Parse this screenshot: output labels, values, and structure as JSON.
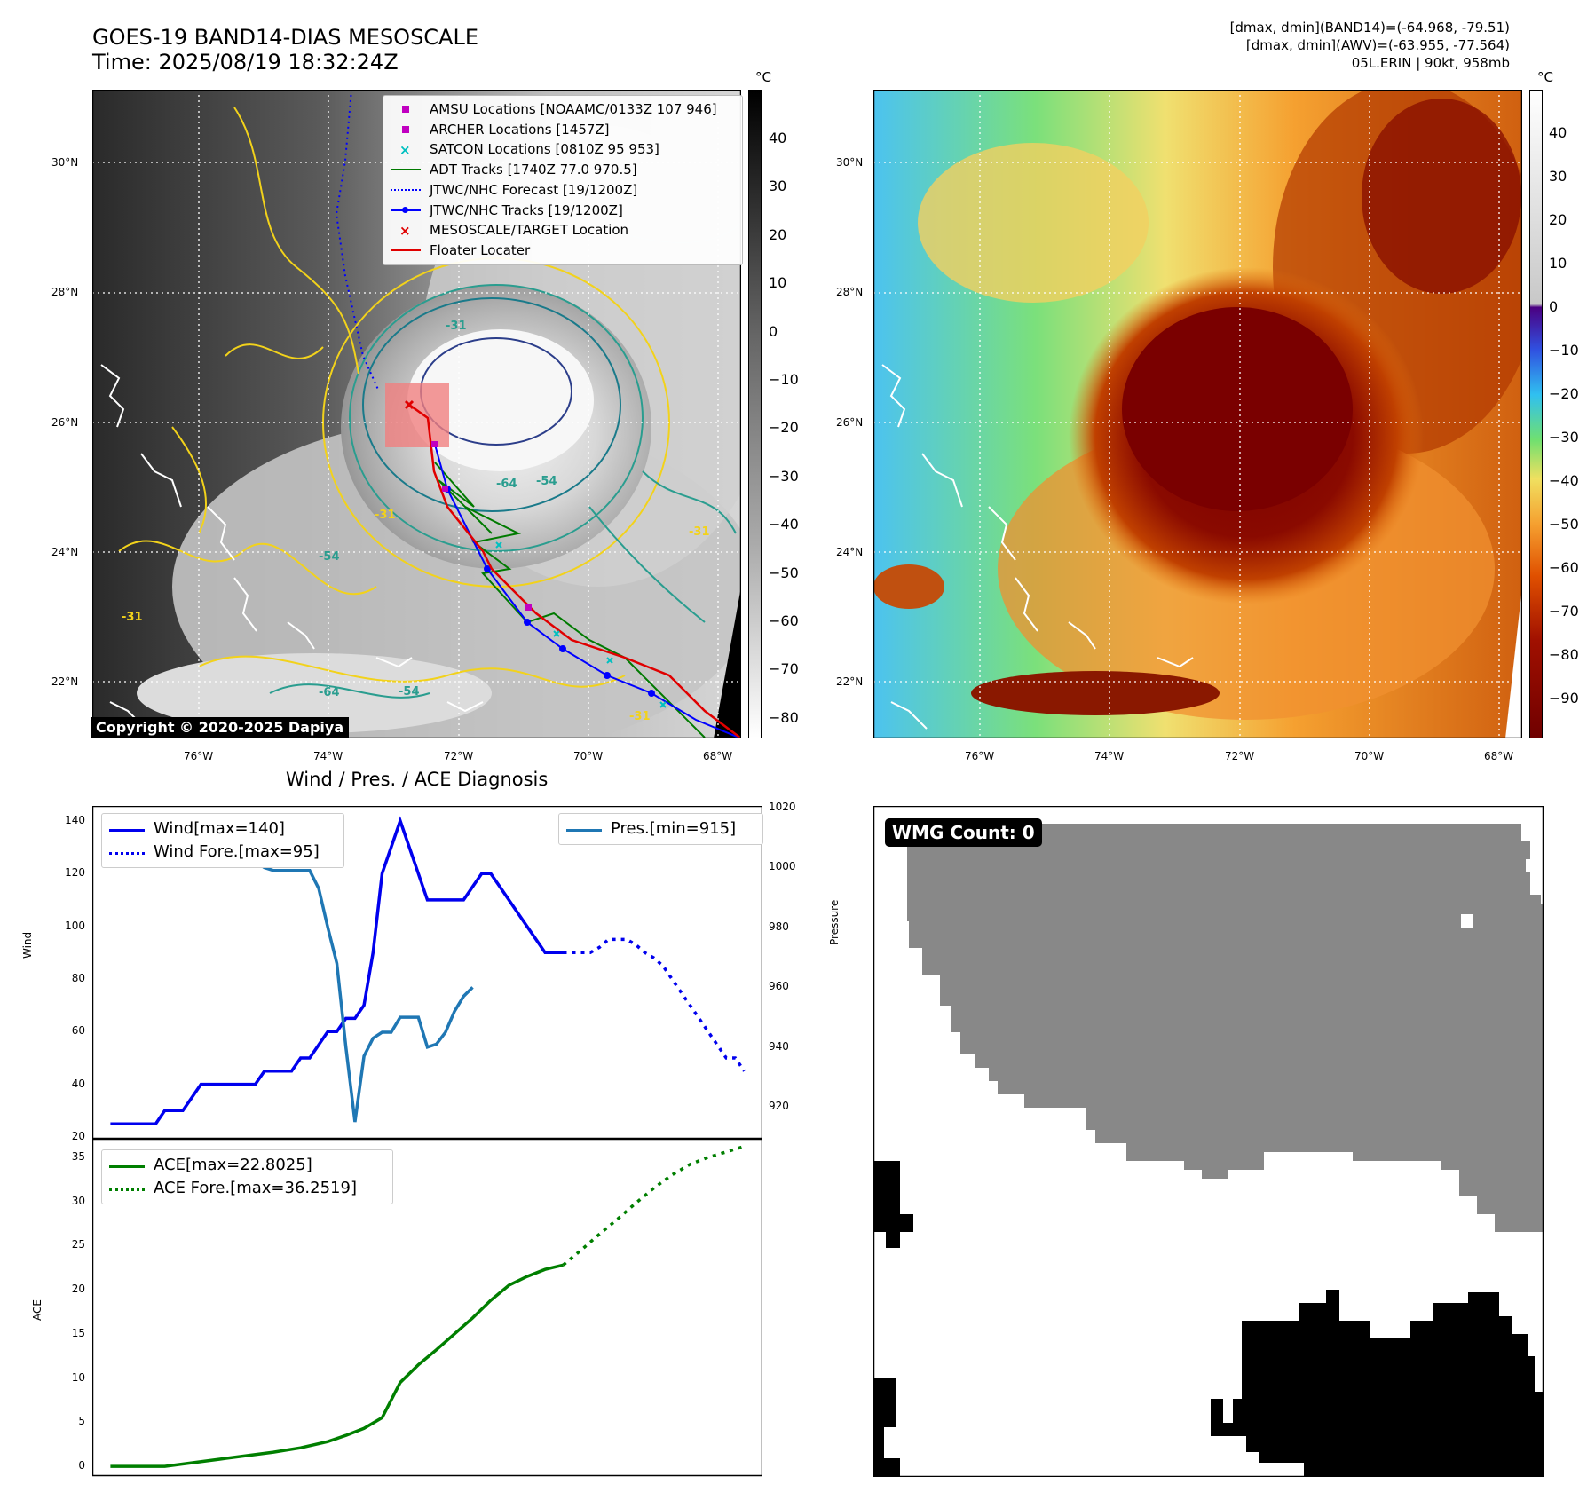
{
  "header": {
    "title_line1": "GOES-19 BAND14-DIAS MESOSCALE",
    "title_line2": "Time: 2025/08/19 18:32:24Z",
    "info_line1": "[dmax, dmin](BAND14)=(-64.968, -79.51)",
    "info_line2": "[dmax, dmin](AWV)=(-63.955, -77.564)",
    "info_line3": "05L.ERIN | 90kt, 958mb"
  },
  "map": {
    "lat_labels": [
      "30°N",
      "28°N",
      "26°N",
      "24°N",
      "22°N"
    ],
    "lon_labels": [
      "76°W",
      "74°W",
      "72°W",
      "70°W",
      "68°W"
    ],
    "copyright": "Copyright © 2020-2025 Dapiya",
    "contour_labels": [
      "-31",
      "-64",
      "-54",
      "-31",
      "-54",
      "-31",
      "-64",
      "-54",
      "-31",
      "-31"
    ],
    "legend": [
      {
        "label": "AMSU Locations [NOAAMC/0133Z 107 946]",
        "symbol": "magenta-square"
      },
      {
        "label": "ARCHER Locations [1457Z]",
        "symbol": "magenta-square"
      },
      {
        "label": "SATCON Locations [0810Z 95 953]",
        "symbol": "cyan-x"
      },
      {
        "label": "ADT Tracks [1740Z 77.0 970.5]",
        "symbol": "green-line"
      },
      {
        "label": "JTWC/NHC Forecast [19/1200Z]",
        "symbol": "blue-dotted-line"
      },
      {
        "label": "JTWC/NHC Tracks [19/1200Z]",
        "symbol": "blue-line-dot"
      },
      {
        "label": "MESOSCALE/TARGET Location",
        "symbol": "red-x"
      },
      {
        "label": "Floater Locater",
        "symbol": "red-line"
      }
    ],
    "colorbar_gray": {
      "unit": "°C",
      "ticks": [
        "40",
        "30",
        "20",
        "10",
        "0",
        "−10",
        "−20",
        "−30",
        "−40",
        "−50",
        "−60",
        "−70",
        "−80"
      ]
    },
    "colorbar_color": {
      "unit": "°C",
      "ticks": [
        "40",
        "30",
        "20",
        "10",
        "0",
        "−10",
        "−20",
        "−30",
        "−40",
        "−50",
        "−60",
        "−70",
        "−80",
        "−90"
      ]
    },
    "colors": {
      "track_red": "#e00000",
      "forecast_blue": "#0000ff",
      "adt_green": "#007a00",
      "amsu_magenta": "#c000c0",
      "satcon_cyan": "#00c0c0"
    }
  },
  "diagnosis": {
    "title": "Wind / Pres. / ACE Diagnosis",
    "wind_ylabel": "Wind",
    "pres_ylabel": "Pressure",
    "ace_ylabel": "ACE",
    "wind_yticks": [
      "140",
      "120",
      "100",
      "80",
      "60",
      "40",
      "20"
    ],
    "pres_yticks": [
      "1020",
      "1000",
      "980",
      "960",
      "940",
      "920"
    ],
    "ace_yticks": [
      "35",
      "30",
      "25",
      "20",
      "15",
      "10",
      "5",
      "0"
    ],
    "legend_wind": "Wind[max=140]",
    "legend_wind_fore": "Wind Fore.[max=95]",
    "legend_pres": "Pres.[min=915]",
    "legend_ace": "ACE[max=22.8025]",
    "legend_ace_fore": "ACE Fore.[max=36.2519]",
    "colors": {
      "wind": "#0000ee",
      "pres": "#1f77b4",
      "ace": "#007f00"
    }
  },
  "wmg": {
    "label": "WMG Count: 0"
  },
  "chart_data": [
    {
      "type": "line",
      "title": "Wind / Pres. / ACE Diagnosis",
      "ylabel": "Wind",
      "ylim": [
        20,
        145
      ],
      "series": [
        {
          "name": "Wind[max=140]",
          "x": [
            0,
            5,
            6,
            7,
            8,
            9,
            10,
            11,
            12,
            13,
            14,
            15,
            16,
            17,
            18,
            19,
            20,
            21,
            22,
            23,
            24,
            25,
            26,
            27,
            28,
            29,
            30,
            31,
            32,
            33,
            34,
            35,
            36,
            37,
            38,
            39,
            40,
            41,
            42,
            43,
            44,
            45,
            46,
            47,
            48,
            49,
            50
          ],
          "values": [
            25,
            25,
            30,
            30,
            30,
            35,
            40,
            40,
            40,
            40,
            40,
            40,
            40,
            45,
            45,
            45,
            45,
            50,
            50,
            55,
            60,
            60,
            65,
            65,
            70,
            90,
            120,
            130,
            140,
            130,
            120,
            110,
            110,
            110,
            110,
            110,
            115,
            120,
            120,
            115,
            110,
            105,
            100,
            95,
            90,
            90,
            90
          ]
        },
        {
          "name": "Wind Fore.[max=95]",
          "x": [
            50,
            51,
            52,
            53,
            54,
            55,
            56,
            57,
            58,
            59,
            60,
            61,
            62,
            63,
            64,
            65,
            66,
            67,
            68,
            69,
            70
          ],
          "values": [
            90,
            90,
            90,
            90,
            92,
            95,
            95,
            95,
            93,
            90,
            88,
            85,
            80,
            75,
            70,
            65,
            60,
            55,
            50,
            50,
            45
          ]
        }
      ],
      "secondary_axis": {
        "ylabel": "Pressure",
        "ylim": [
          910,
          1020
        ],
        "series": [
          {
            "name": "Pres.[min=915]",
            "x": [
              0,
              1,
              2,
              3,
              4,
              5,
              6,
              7,
              8,
              9,
              10,
              11,
              12,
              13,
              14,
              15,
              16,
              17,
              18,
              19,
              20,
              21,
              22,
              23,
              24,
              25,
              26,
              27,
              28,
              29,
              30,
              31,
              32,
              33,
              34,
              35,
              36,
              37,
              38,
              39,
              40
            ],
            "values": [
              1015,
              1015,
              1010,
              1008,
              1007,
              1007,
              1006,
              1006,
              1005,
              1005,
              1004,
              1004,
              1003,
              1003,
              1002,
              1002,
              1002,
              1000,
              999,
              999,
              999,
              999,
              999,
              993,
              980,
              968,
              940,
              915,
              937,
              943,
              945,
              945,
              950,
              950,
              950,
              940,
              941,
              945,
              952,
              957,
              960
            ]
          }
        ]
      }
    },
    {
      "type": "line",
      "ylabel": "ACE",
      "ylim": [
        -1,
        37
      ],
      "series": [
        {
          "name": "ACE[max=22.8025]",
          "x": [
            0,
            6,
            12,
            18,
            21,
            24,
            26,
            28,
            30,
            32,
            34,
            36,
            38,
            40,
            42,
            44,
            46,
            48,
            50
          ],
          "values": [
            0,
            0,
            0.8,
            1.6,
            2.1,
            2.8,
            3.5,
            4.3,
            5.5,
            9.5,
            11.5,
            13.2,
            15,
            16.8,
            18.8,
            20.5,
            21.5,
            22.3,
            22.8
          ]
        },
        {
          "name": "ACE Fore.[max=36.2519]",
          "x": [
            50,
            52,
            54,
            56,
            58,
            60,
            62,
            64,
            66,
            68,
            70
          ],
          "values": [
            22.8,
            24.5,
            26.3,
            28,
            29.8,
            31.5,
            33,
            34.2,
            35,
            35.6,
            36.25
          ]
        }
      ]
    }
  ]
}
